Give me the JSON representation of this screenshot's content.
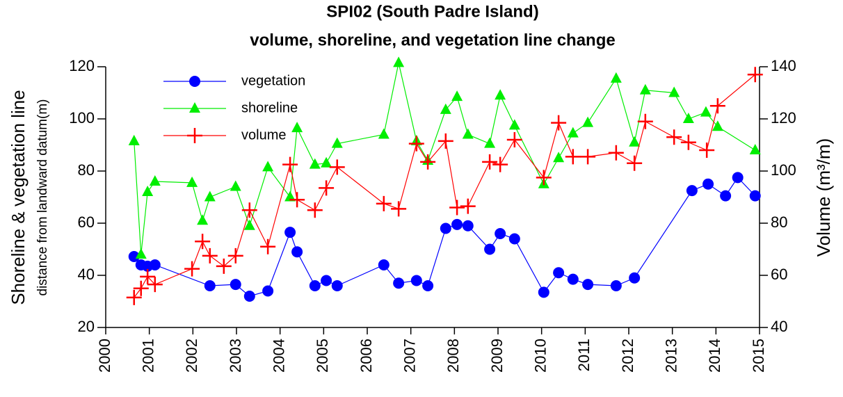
{
  "chart_data": {
    "type": "line",
    "title": [
      "SPI02 (South Padre Island)",
      "volume, shoreline, and vegetation line change"
    ],
    "y_label": [
      "Shoreline & vegetation line",
      "distance from landward datum(m)"
    ],
    "y2_label": "Volume (m³/m)",
    "xlim": [
      2000,
      2015
    ],
    "xticks": [
      2000,
      2001,
      2002,
      2003,
      2004,
      2005,
      2006,
      2007,
      2008,
      2009,
      2010,
      2011,
      2012,
      2013,
      2014,
      2015
    ],
    "ylim": [
      20,
      120
    ],
    "yticks": [
      20,
      40,
      60,
      80,
      100,
      120
    ],
    "y2lim": [
      40,
      140
    ],
    "y2ticks": [
      40,
      60,
      80,
      100,
      120,
      140
    ],
    "legend": "upper left",
    "series": [
      {
        "name": "vegetation",
        "color": "#0000ff",
        "marker": "circle",
        "x": [
          2000.65,
          2000.81,
          2000.96,
          2001.13,
          2002.39,
          2002.98,
          2003.3,
          2003.72,
          2004.23,
          2004.39,
          2004.8,
          2005.06,
          2005.31,
          2006.38,
          2006.72,
          2007.13,
          2007.39,
          2007.8,
          2008.06,
          2008.31,
          2008.81,
          2009.05,
          2009.38,
          2010.05,
          2010.39,
          2010.72,
          2011.06,
          2011.71,
          2012.13,
          2013.45,
          2013.82,
          2014.22,
          2014.5,
          2014.9
        ],
        "values": [
          47.2,
          44,
          43.5,
          44,
          36,
          36.5,
          32,
          34,
          56.5,
          49,
          36,
          38,
          36,
          44,
          37,
          38,
          36,
          58,
          59.5,
          59,
          50,
          56,
          54,
          33.5,
          41,
          38.5,
          36.5,
          36,
          39,
          72.5,
          75,
          70.5,
          77.5,
          70.5
        ]
      },
      {
        "name": "shoreline",
        "color": "#00ee00",
        "marker": "triangle",
        "x": [
          2000.65,
          2000.81,
          2000.96,
          2001.13,
          2001.98,
          2002.22,
          2002.39,
          2002.98,
          2003.3,
          2003.72,
          2004.23,
          2004.39,
          2004.8,
          2005.06,
          2005.31,
          2006.38,
          2006.72,
          2007.13,
          2007.39,
          2007.8,
          2008.06,
          2008.31,
          2008.81,
          2009.05,
          2009.38,
          2010.05,
          2010.39,
          2010.72,
          2011.06,
          2011.71,
          2012.13,
          2012.38,
          2013.04,
          2013.37,
          2013.77,
          2014.04,
          2014.9
        ],
        "values": [
          91.5,
          48,
          72,
          76,
          75.5,
          61,
          70,
          74,
          59,
          81.5,
          70,
          96.5,
          82.5,
          83,
          90.5,
          94,
          121.5,
          91.5,
          84,
          103.5,
          108.5,
          94,
          90.5,
          109,
          97.5,
          75,
          85,
          94.5,
          98.5,
          115.5,
          91,
          111,
          110,
          100,
          102.5,
          97,
          88
        ]
      },
      {
        "name": "volume",
        "color": "#ff0000",
        "marker": "plus",
        "axis": "y2",
        "x": [
          2000.65,
          2000.81,
          2000.96,
          2001.13,
          2001.98,
          2002.22,
          2002.39,
          2002.71,
          2002.98,
          2003.3,
          2003.72,
          2004.23,
          2004.39,
          2004.8,
          2005.06,
          2005.31,
          2006.38,
          2006.72,
          2007.13,
          2007.39,
          2007.8,
          2008.06,
          2008.31,
          2008.81,
          2009.05,
          2009.38,
          2010.05,
          2010.39,
          2010.72,
          2011.06,
          2011.71,
          2012.13,
          2012.38,
          2013.04,
          2013.37,
          2013.79,
          2014.04,
          2014.9
        ],
        "values": [
          51.5,
          55,
          59.5,
          56.5,
          62.5,
          73,
          67.5,
          63.5,
          67.5,
          85,
          71,
          102.5,
          89,
          85,
          93.5,
          101.5,
          87.5,
          85.5,
          110.5,
          103.5,
          111.5,
          86,
          86.5,
          103.5,
          102.5,
          112,
          97.5,
          118.5,
          105.5,
          105.5,
          107,
          103,
          119,
          113,
          111,
          108,
          125,
          137
        ]
      }
    ]
  }
}
